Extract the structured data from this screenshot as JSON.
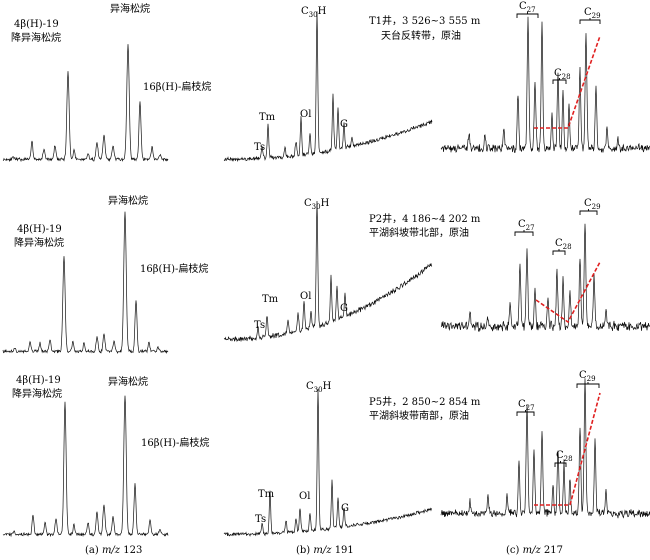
{
  "colors": {
    "trace": "#111111",
    "marker": "#e02020",
    "background": "#ffffff"
  },
  "columns": [
    {
      "id": "a",
      "caption_prefix": "(a) ",
      "caption_italic": "m/z",
      "caption_suffix": " 123"
    },
    {
      "id": "b",
      "caption_prefix": "(b) ",
      "caption_italic": "m/z",
      "caption_suffix": " 191"
    },
    {
      "id": "c",
      "caption_prefix": "(c) ",
      "caption_italic": "m/z",
      "caption_suffix": " 217"
    }
  ],
  "labels": {
    "isopimarane": "异海松烷",
    "nor_line1": "4β(H)-19",
    "nor_line2": "降异海松烷",
    "phyllocladane": "16β(H)-扁枝烷",
    "ts": "Ts",
    "tm": "Tm",
    "ol": "Ol",
    "g": "G",
    "c30_main": "C",
    "c30_sub": "30",
    "c30_tail": "H",
    "c27_main": "C",
    "c27_sub": "27",
    "c28_main": "C",
    "c28_sub": "28",
    "c29_main": "C",
    "c29_sub": "29"
  },
  "wells": [
    {
      "line1": "T1井，3 526~3 555 m",
      "line2": "天台反转带，原油"
    },
    {
      "line1": "P2井，4 186~4 202 m",
      "line2": "平湖斜坡带北部，原油"
    },
    {
      "line1": "P5井，2 850~2 854 m",
      "line2": "平湖斜坡带南部，原油"
    }
  ],
  "chart_data": [
    {
      "type": "line",
      "panel": "T1 m/z 123",
      "xlabel": "",
      "ylabel": "",
      "peaks": [
        {
          "name": "4β(H)-19降异海松烷",
          "relative_height": 0.78
        },
        {
          "name": "异海松烷",
          "relative_height": 1.0
        },
        {
          "name": "16β(H)-扁枝烷",
          "relative_height": 0.45
        }
      ]
    },
    {
      "type": "line",
      "panel": "T1 m/z 191",
      "xlabel": "",
      "ylabel": "",
      "peaks": [
        {
          "name": "Ts",
          "relative_height": 0.1
        },
        {
          "name": "Tm",
          "relative_height": 0.3
        },
        {
          "name": "Ol",
          "relative_height": 0.27
        },
        {
          "name": "C30H",
          "relative_height": 1.0
        },
        {
          "name": "G",
          "relative_height": 0.18
        }
      ]
    },
    {
      "type": "line",
      "panel": "T1 m/z 217",
      "xlabel": "",
      "ylabel": "",
      "peaks": [
        {
          "name": "C27",
          "relative_height": 0.9
        },
        {
          "name": "C28",
          "relative_height": 0.55
        },
        {
          "name": "C29",
          "relative_height": 0.75
        }
      ]
    },
    {
      "type": "line",
      "panel": "P2 m/z 123",
      "xlabel": "",
      "ylabel": "",
      "peaks": [
        {
          "name": "4β(H)-19降异海松烷",
          "relative_height": 0.66
        },
        {
          "name": "异海松烷",
          "relative_height": 1.0
        },
        {
          "name": "16β(H)-扁枝烷",
          "relative_height": 0.35
        }
      ]
    },
    {
      "type": "line",
      "panel": "P2 m/z 191",
      "xlabel": "",
      "ylabel": "",
      "peaks": [
        {
          "name": "Ts",
          "relative_height": 0.12
        },
        {
          "name": "Tm",
          "relative_height": 0.2
        },
        {
          "name": "Ol",
          "relative_height": 0.22
        },
        {
          "name": "C30H",
          "relative_height": 1.0
        },
        {
          "name": "G",
          "relative_height": 0.15
        }
      ]
    },
    {
      "type": "line",
      "panel": "P2 m/z 217",
      "xlabel": "",
      "ylabel": "",
      "peaks": [
        {
          "name": "C27",
          "relative_height": 0.6
        },
        {
          "name": "C28",
          "relative_height": 0.45
        },
        {
          "name": "C29",
          "relative_height": 0.75
        }
      ]
    },
    {
      "type": "line",
      "panel": "P5 m/z 123",
      "xlabel": "",
      "ylabel": "",
      "peaks": [
        {
          "name": "4β(H)-19降异海松烷",
          "relative_height": 0.88
        },
        {
          "name": "异海松烷",
          "relative_height": 1.0
        },
        {
          "name": "16β(H)-扁枝烷",
          "relative_height": 0.38
        }
      ]
    },
    {
      "type": "line",
      "panel": "P5 m/z 191",
      "xlabel": "",
      "ylabel": "",
      "peaks": [
        {
          "name": "Ts",
          "relative_height": 0.15
        },
        {
          "name": "Tm",
          "relative_height": 0.35
        },
        {
          "name": "Ol",
          "relative_height": 0.2
        },
        {
          "name": "C30H",
          "relative_height": 1.0
        },
        {
          "name": "G",
          "relative_height": 0.15
        }
      ]
    },
    {
      "type": "line",
      "panel": "P5 m/z 217",
      "xlabel": "",
      "ylabel": "",
      "peaks": [
        {
          "name": "C27",
          "relative_height": 0.8
        },
        {
          "name": "C28",
          "relative_height": 0.45
        },
        {
          "name": "C29",
          "relative_height": 0.95
        }
      ]
    }
  ]
}
